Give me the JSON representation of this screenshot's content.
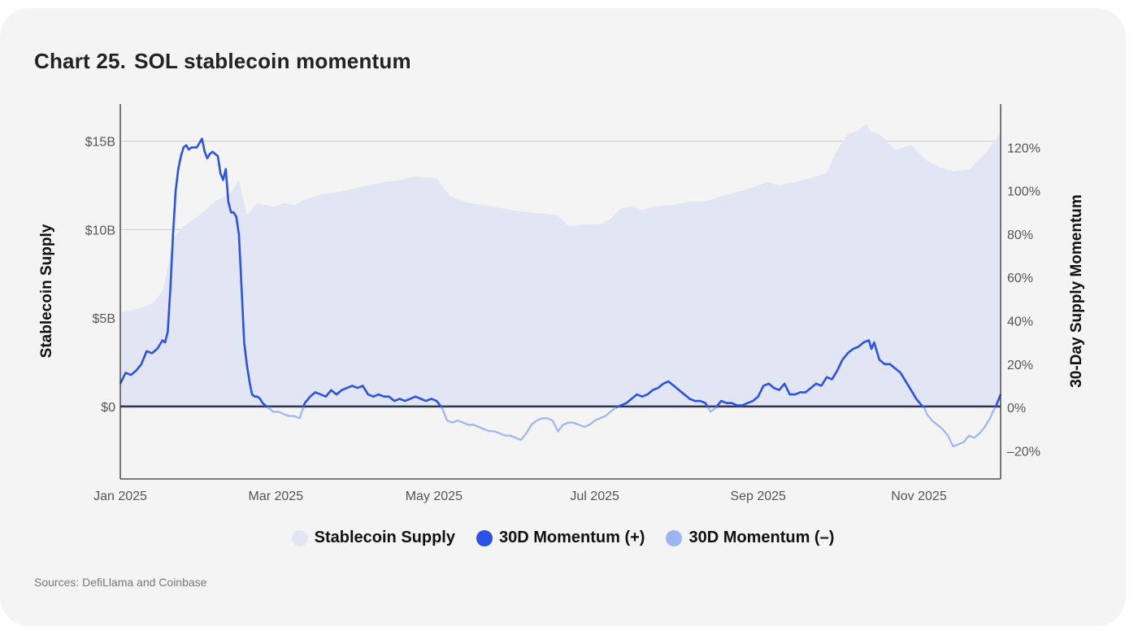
{
  "title_number": "Chart 25.",
  "title_text": "SOL stablecoin momentum",
  "source": "Sources: DefiLlama and Coinbase",
  "legend": [
    {
      "label": "Stablecoin Supply",
      "color": "#e2e5f3"
    },
    {
      "label": "30D Momentum (+)",
      "color": "#2a52e6"
    },
    {
      "label": "30D Momentum (–)",
      "color": "#9db5f5"
    }
  ],
  "chart_data": {
    "type": "line",
    "ylabel_left": "Stablecoin Supply",
    "ylabel_right": "30-Day Supply Momentum",
    "x_ticks": [
      "Jan 2025",
      "Mar 2025",
      "May 2025",
      "Jul 2025",
      "Sep 2025",
      "Nov 2025"
    ],
    "x_tick_days": [
      0,
      59,
      119,
      180,
      242,
      303
    ],
    "x_range_days": [
      0,
      334
    ],
    "y_left_ticks": [
      "$0",
      "$5B",
      "$10B",
      "$15B"
    ],
    "y_left_tick_values": [
      0,
      5,
      10,
      15
    ],
    "y_left_range_billions": [
      -4.1,
      17.1
    ],
    "y_right_ticks": [
      "–20%",
      "0%",
      "20%",
      "40%",
      "60%",
      "80%",
      "100%",
      "120%"
    ],
    "y_right_tick_values": [
      -20,
      0,
      20,
      40,
      60,
      80,
      100,
      120
    ],
    "y_right_range_pct": [
      -33,
      140
    ],
    "series": [
      {
        "name": "Stablecoin Supply",
        "unit": "billion USD",
        "points": [
          [
            0,
            5.3
          ],
          [
            6,
            5.5
          ],
          [
            12,
            5.8
          ],
          [
            16,
            6.5
          ],
          [
            18,
            7.8
          ],
          [
            20,
            9.5
          ],
          [
            24,
            10.2
          ],
          [
            30,
            10.8
          ],
          [
            36,
            11.6
          ],
          [
            42,
            12.1
          ],
          [
            45,
            12.8
          ],
          [
            48,
            10.8
          ],
          [
            52,
            11.5
          ],
          [
            58,
            11.3
          ],
          [
            62,
            11.5
          ],
          [
            66,
            11.4
          ],
          [
            70,
            11.7
          ],
          [
            76,
            12.0
          ],
          [
            82,
            12.1
          ],
          [
            88,
            12.3
          ],
          [
            94,
            12.5
          ],
          [
            100,
            12.7
          ],
          [
            106,
            12.8
          ],
          [
            112,
            13.0
          ],
          [
            120,
            12.9
          ],
          [
            125,
            11.9
          ],
          [
            130,
            11.6
          ],
          [
            136,
            11.4
          ],
          [
            142,
            11.3
          ],
          [
            148,
            11.1
          ],
          [
            154,
            11.0
          ],
          [
            160,
            10.9
          ],
          [
            166,
            10.8
          ],
          [
            170,
            10.2
          ],
          [
            176,
            10.3
          ],
          [
            182,
            10.3
          ],
          [
            186,
            10.6
          ],
          [
            190,
            11.2
          ],
          [
            194,
            11.3
          ],
          [
            198,
            11.1
          ],
          [
            202,
            11.3
          ],
          [
            210,
            11.4
          ],
          [
            216,
            11.6
          ],
          [
            222,
            11.6
          ],
          [
            228,
            11.9
          ],
          [
            234,
            12.1
          ],
          [
            240,
            12.4
          ],
          [
            246,
            12.7
          ],
          [
            250,
            12.5
          ],
          [
            256,
            12.7
          ],
          [
            262,
            12.9
          ],
          [
            268,
            13.2
          ],
          [
            272,
            14.5
          ],
          [
            276,
            15.4
          ],
          [
            280,
            15.6
          ],
          [
            283,
            16.0
          ],
          [
            285,
            15.5
          ],
          [
            288,
            15.4
          ],
          [
            294,
            14.5
          ],
          [
            300,
            14.8
          ],
          [
            306,
            13.9
          ],
          [
            311,
            13.5
          ],
          [
            316,
            13.3
          ],
          [
            322,
            13.4
          ],
          [
            328,
            14.3
          ],
          [
            334,
            15.5
          ]
        ]
      },
      {
        "name": "30D Momentum",
        "unit": "percent",
        "points": [
          [
            0,
            11
          ],
          [
            2,
            16
          ],
          [
            4,
            15
          ],
          [
            6,
            17
          ],
          [
            8,
            20
          ],
          [
            10,
            26
          ],
          [
            12,
            25
          ],
          [
            14,
            27
          ],
          [
            16,
            31
          ],
          [
            17,
            30
          ],
          [
            18,
            35
          ],
          [
            19,
            55
          ],
          [
            20,
            80
          ],
          [
            21,
            100
          ],
          [
            22,
            110
          ],
          [
            23,
            116
          ],
          [
            24,
            120
          ],
          [
            25,
            121
          ],
          [
            26,
            119
          ],
          [
            27,
            120
          ],
          [
            29,
            120
          ],
          [
            30,
            122
          ],
          [
            31,
            124
          ],
          [
            32,
            118
          ],
          [
            33,
            115
          ],
          [
            34,
            117
          ],
          [
            35,
            118
          ],
          [
            36,
            117
          ],
          [
            37,
            116
          ],
          [
            38,
            108
          ],
          [
            39,
            105
          ],
          [
            40,
            110
          ],
          [
            41,
            95
          ],
          [
            42,
            90
          ],
          [
            43,
            90
          ],
          [
            44,
            88
          ],
          [
            45,
            80
          ],
          [
            46,
            55
          ],
          [
            47,
            30
          ],
          [
            48,
            20
          ],
          [
            49,
            12
          ],
          [
            50,
            6
          ],
          [
            51,
            5
          ],
          [
            52,
            5
          ],
          [
            53,
            4
          ],
          [
            54,
            2
          ],
          [
            55,
            1
          ],
          [
            56,
            0
          ],
          [
            58,
            -2
          ],
          [
            60,
            -2
          ],
          [
            62,
            -3
          ],
          [
            64,
            -4
          ],
          [
            66,
            -4
          ],
          [
            68,
            -5
          ],
          [
            70,
            2
          ],
          [
            72,
            5
          ],
          [
            74,
            7
          ],
          [
            76,
            6
          ],
          [
            78,
            5
          ],
          [
            80,
            8
          ],
          [
            82,
            6
          ],
          [
            84,
            8
          ],
          [
            86,
            9
          ],
          [
            88,
            10
          ],
          [
            90,
            9
          ],
          [
            92,
            10
          ],
          [
            94,
            6
          ],
          [
            96,
            5
          ],
          [
            98,
            6
          ],
          [
            100,
            5
          ],
          [
            102,
            5
          ],
          [
            104,
            3
          ],
          [
            106,
            4
          ],
          [
            108,
            3
          ],
          [
            110,
            4
          ],
          [
            112,
            5
          ],
          [
            114,
            4
          ],
          [
            116,
            3
          ],
          [
            118,
            4
          ],
          [
            120,
            3
          ],
          [
            122,
            0
          ],
          [
            124,
            -6
          ],
          [
            126,
            -7
          ],
          [
            128,
            -6
          ],
          [
            130,
            -7
          ],
          [
            132,
            -8
          ],
          [
            134,
            -8
          ],
          [
            136,
            -9
          ],
          [
            138,
            -10
          ],
          [
            140,
            -11
          ],
          [
            142,
            -11
          ],
          [
            144,
            -12
          ],
          [
            146,
            -13
          ],
          [
            148,
            -13
          ],
          [
            150,
            -14
          ],
          [
            152,
            -15
          ],
          [
            154,
            -12
          ],
          [
            156,
            -8
          ],
          [
            158,
            -6
          ],
          [
            160,
            -5
          ],
          [
            162,
            -5
          ],
          [
            164,
            -6
          ],
          [
            166,
            -11
          ],
          [
            168,
            -8
          ],
          [
            170,
            -7
          ],
          [
            172,
            -7
          ],
          [
            174,
            -8
          ],
          [
            176,
            -9
          ],
          [
            178,
            -8
          ],
          [
            180,
            -6
          ],
          [
            182,
            -5
          ],
          [
            184,
            -4
          ],
          [
            186,
            -2
          ],
          [
            188,
            0
          ],
          [
            190,
            1
          ],
          [
            192,
            2
          ],
          [
            194,
            4
          ],
          [
            196,
            6
          ],
          [
            198,
            5
          ],
          [
            200,
            6
          ],
          [
            202,
            8
          ],
          [
            204,
            9
          ],
          [
            206,
            11
          ],
          [
            208,
            12
          ],
          [
            210,
            10
          ],
          [
            212,
            8
          ],
          [
            214,
            6
          ],
          [
            216,
            4
          ],
          [
            218,
            3
          ],
          [
            220,
            3
          ],
          [
            222,
            2
          ],
          [
            224,
            -2
          ],
          [
            226,
            0
          ],
          [
            228,
            3
          ],
          [
            230,
            2
          ],
          [
            232,
            2
          ],
          [
            234,
            1
          ],
          [
            236,
            1
          ],
          [
            238,
            2
          ],
          [
            240,
            3
          ],
          [
            242,
            5
          ],
          [
            244,
            10
          ],
          [
            246,
            11
          ],
          [
            248,
            9
          ],
          [
            250,
            8
          ],
          [
            252,
            11
          ],
          [
            254,
            6
          ],
          [
            256,
            6
          ],
          [
            258,
            7
          ],
          [
            260,
            7
          ],
          [
            262,
            9
          ],
          [
            264,
            11
          ],
          [
            266,
            10
          ],
          [
            268,
            14
          ],
          [
            270,
            13
          ],
          [
            272,
            17
          ],
          [
            274,
            22
          ],
          [
            276,
            25
          ],
          [
            278,
            27
          ],
          [
            280,
            28
          ],
          [
            282,
            30
          ],
          [
            284,
            31
          ],
          [
            285,
            27
          ],
          [
            286,
            30
          ],
          [
            288,
            22
          ],
          [
            290,
            20
          ],
          [
            292,
            20
          ],
          [
            294,
            18
          ],
          [
            296,
            16
          ],
          [
            298,
            12
          ],
          [
            300,
            8
          ],
          [
            302,
            4
          ],
          [
            304,
            1
          ],
          [
            305,
            0
          ],
          [
            306,
            -3
          ],
          [
            308,
            -6
          ],
          [
            310,
            -8
          ],
          [
            312,
            -10
          ],
          [
            314,
            -13
          ],
          [
            316,
            -18
          ],
          [
            318,
            -17
          ],
          [
            320,
            -16
          ],
          [
            322,
            -13
          ],
          [
            324,
            -14
          ],
          [
            326,
            -12
          ],
          [
            328,
            -9
          ],
          [
            330,
            -5
          ],
          [
            331,
            -2
          ],
          [
            332,
            0
          ],
          [
            333,
            3
          ],
          [
            334,
            6
          ]
        ]
      }
    ]
  }
}
